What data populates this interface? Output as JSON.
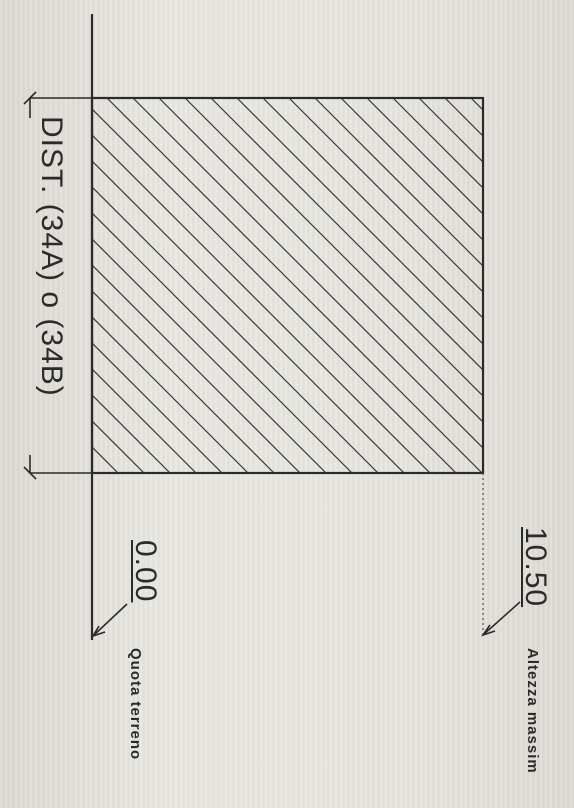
{
  "dimension": {
    "label": "DIST. (34A) o (34B)"
  },
  "levels": {
    "top_value": "10.50",
    "top_caption": "Altezza massim",
    "ground_value": "0.00",
    "ground_caption": "Quota terreno"
  }
}
